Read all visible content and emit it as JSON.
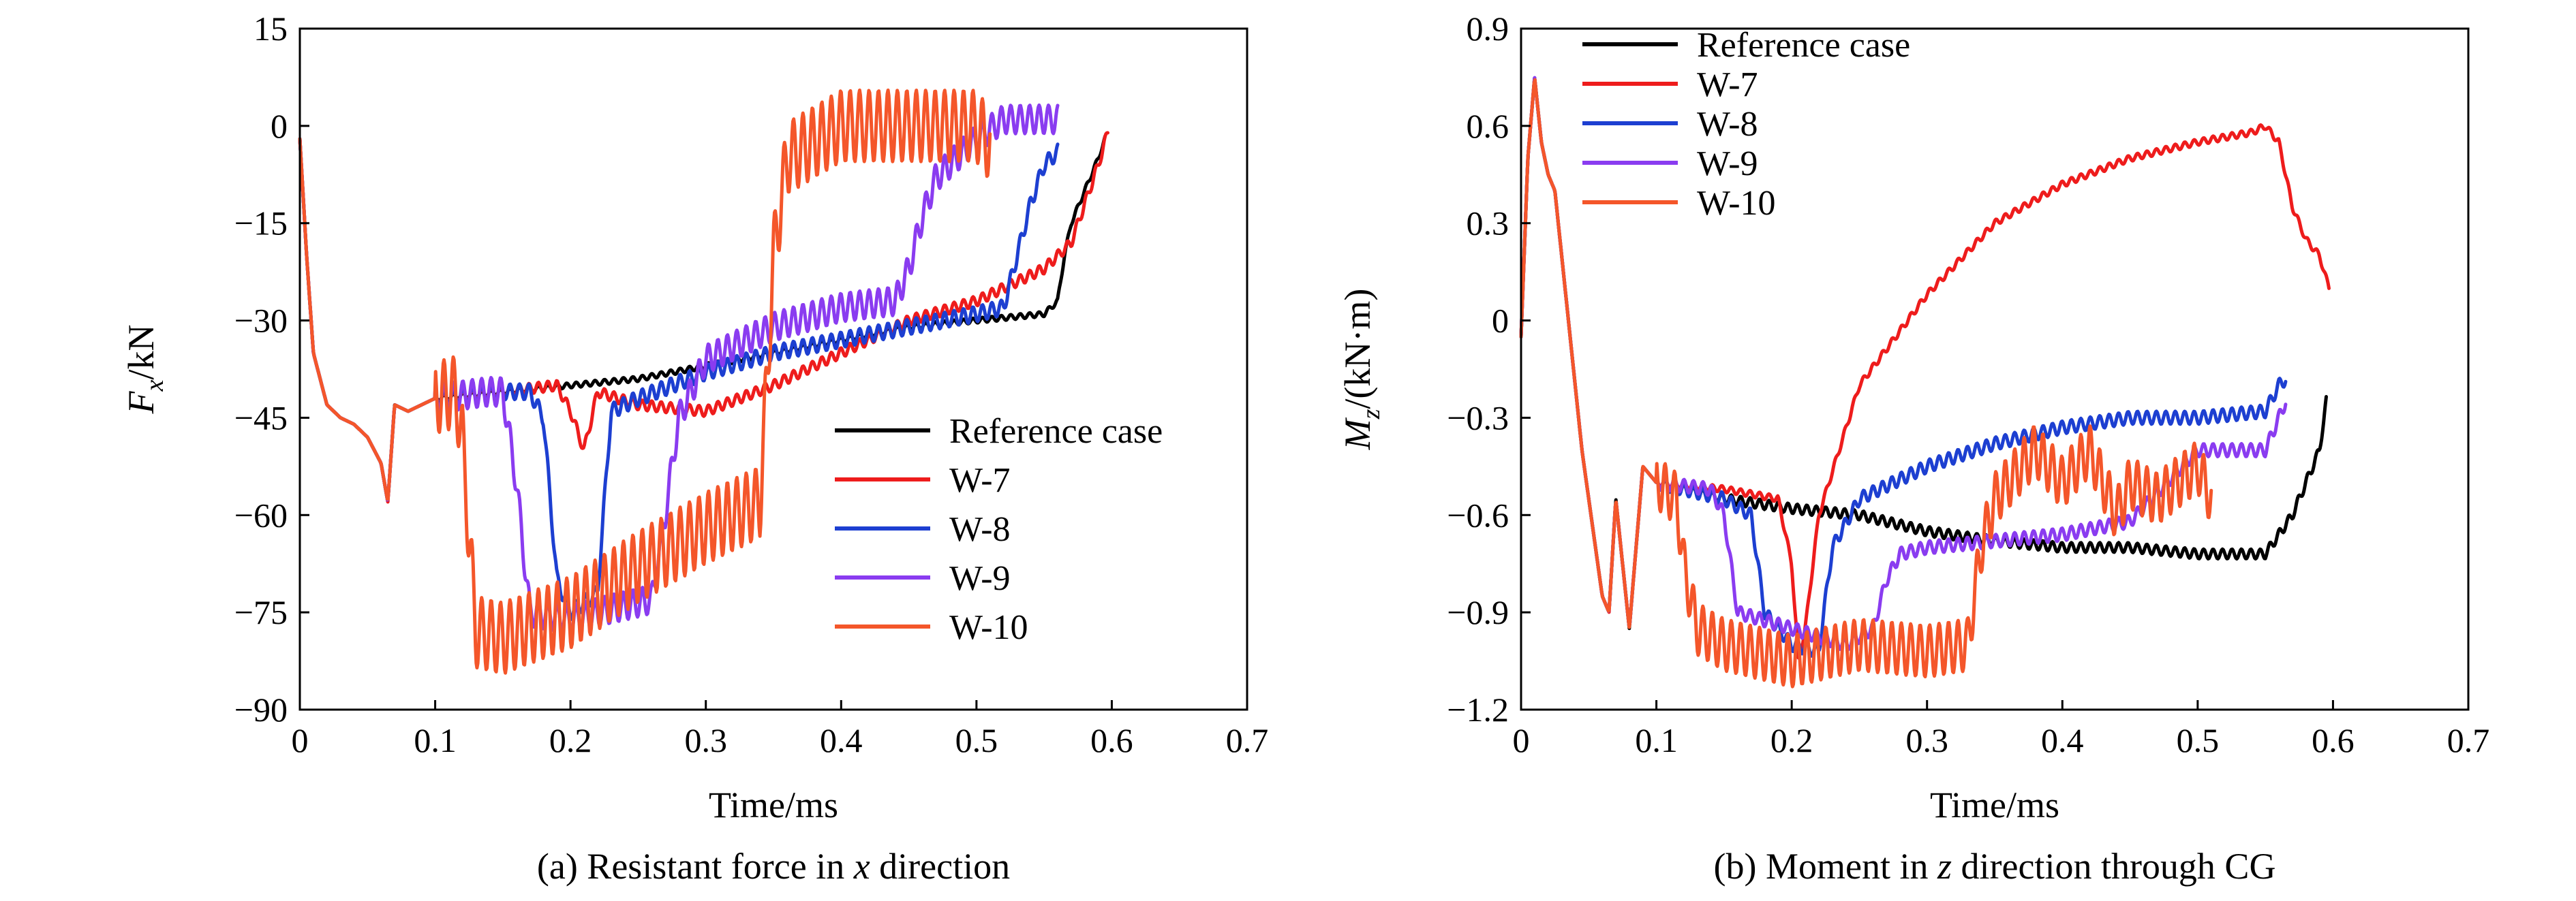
{
  "figure": {
    "captions": [
      {
        "prefix": "(a) Resistant force in ",
        "var": "x",
        "suffix": " direction"
      },
      {
        "prefix": "(b) Moment in ",
        "var": "z",
        "suffix": " direction through CG"
      }
    ]
  },
  "colors": {
    "Reference case": "#000000",
    "W-7": "#ee1c1c",
    "W-8": "#1d3fd1",
    "W-9": "#8a3cf0",
    "W-10": "#f4562a"
  },
  "chart_data": [
    {
      "type": "line",
      "xlabel": "Time/ms",
      "ylabel": {
        "main": "F",
        "sub": "x",
        "unit": "/kN"
      },
      "xlim": [
        0,
        0.7
      ],
      "ylim": [
        -90,
        15
      ],
      "xticks": [
        0,
        0.1,
        0.2,
        0.3,
        0.4,
        0.5,
        0.6,
        0.7
      ],
      "xtick_labels": [
        "0",
        "0.1",
        "0.2",
        "0.3",
        "0.4",
        "0.5",
        "0.6",
        "0.7"
      ],
      "yticks": [
        15,
        0,
        -15,
        -30,
        -45,
        -60,
        -75,
        -90
      ],
      "ytick_labels": [
        "15",
        "0",
        "−15",
        "−30",
        "−45",
        "−60",
        "−75",
        "−90"
      ],
      "grid": false,
      "legend_position": "bottom-right",
      "series": [
        {
          "name": "Reference case",
          "x": [
            0,
            0.005,
            0.01,
            0.02,
            0.03,
            0.04,
            0.05,
            0.06,
            0.065,
            0.07,
            0.08,
            0.1,
            0.15,
            0.2,
            0.25,
            0.3,
            0.35,
            0.4,
            0.45,
            0.5,
            0.55,
            0.56,
            0.565,
            0.57,
            0.58,
            0.59,
            0.595
          ],
          "y": [
            -2,
            -20,
            -35,
            -43,
            -45,
            -46,
            -48,
            -52,
            -58,
            -43,
            -44,
            -42,
            -41,
            -40,
            -39,
            -37,
            -35,
            -33,
            -31,
            -30,
            -29,
            -27,
            -20,
            -15,
            -10,
            -5,
            -2
          ]
        },
        {
          "name": "W-7",
          "x": [
            0,
            0.005,
            0.01,
            0.02,
            0.03,
            0.04,
            0.05,
            0.06,
            0.065,
            0.07,
            0.08,
            0.1,
            0.15,
            0.19,
            0.2,
            0.21,
            0.22,
            0.25,
            0.3,
            0.35,
            0.4,
            0.45,
            0.5,
            0.55,
            0.57,
            0.58,
            0.59,
            0.597
          ],
          "y": [
            -2,
            -20,
            -35,
            -43,
            -45,
            -46,
            -48,
            -52,
            -58,
            -43,
            -44,
            -42,
            -41,
            -40,
            -44,
            -50,
            -41,
            -43,
            -44,
            -40,
            -35,
            -30,
            -27,
            -22,
            -18,
            -12,
            -6,
            -1
          ]
        },
        {
          "name": "W-8",
          "x": [
            0,
            0.005,
            0.01,
            0.02,
            0.03,
            0.04,
            0.05,
            0.06,
            0.065,
            0.07,
            0.08,
            0.1,
            0.15,
            0.17,
            0.18,
            0.19,
            0.2,
            0.22,
            0.23,
            0.25,
            0.3,
            0.35,
            0.4,
            0.45,
            0.5,
            0.52,
            0.53,
            0.54,
            0.55,
            0.56
          ],
          "y": [
            -2,
            -20,
            -35,
            -43,
            -45,
            -46,
            -48,
            -52,
            -58,
            -43,
            -44,
            -42,
            -41,
            -41,
            -45,
            -70,
            -75,
            -72,
            -44,
            -42,
            -38,
            -35,
            -33,
            -31,
            -29,
            -28,
            -20,
            -12,
            -6,
            -4
          ]
        },
        {
          "name": "W-9",
          "x": [
            0,
            0.005,
            0.01,
            0.02,
            0.03,
            0.04,
            0.05,
            0.06,
            0.065,
            0.07,
            0.08,
            0.1,
            0.14,
            0.15,
            0.16,
            0.17,
            0.2,
            0.26,
            0.27,
            0.28,
            0.3,
            0.35,
            0.4,
            0.44,
            0.45,
            0.46,
            0.47,
            0.5,
            0.52,
            0.54,
            0.56
          ],
          "y": [
            -2,
            -20,
            -35,
            -43,
            -45,
            -46,
            -48,
            -52,
            -58,
            -43,
            -44,
            -42,
            -41,
            -41,
            -55,
            -75,
            -76,
            -73,
            -60,
            -45,
            -36,
            -31,
            -28,
            -27,
            -22,
            -14,
            -8,
            -2,
            1,
            1,
            1
          ]
        },
        {
          "name": "W-10",
          "x": [
            0,
            0.005,
            0.01,
            0.02,
            0.03,
            0.04,
            0.05,
            0.06,
            0.065,
            0.07,
            0.08,
            0.1,
            0.115,
            0.12,
            0.13,
            0.15,
            0.2,
            0.25,
            0.3,
            0.34,
            0.345,
            0.35,
            0.36,
            0.4,
            0.45,
            0.5,
            0.51
          ],
          "y": [
            -2,
            -20,
            -35,
            -43,
            -45,
            -46,
            -48,
            -52,
            -58,
            -43,
            -44,
            -42,
            -41,
            -48,
            -78,
            -79,
            -75,
            -68,
            -62,
            -58,
            -40,
            -20,
            -5,
            0,
            0,
            0,
            -3
          ]
        }
      ]
    },
    {
      "type": "line",
      "xlabel": "Time/ms",
      "ylabel": {
        "main": "M",
        "sub": "z",
        "unit": "/(kN·m)"
      },
      "xlim": [
        0,
        0.7
      ],
      "ylim": [
        -1.2,
        0.9
      ],
      "xticks": [
        0,
        0.1,
        0.2,
        0.3,
        0.4,
        0.5,
        0.6,
        0.7
      ],
      "xtick_labels": [
        "0",
        "0.1",
        "0.2",
        "0.3",
        "0.4",
        "0.5",
        "0.6",
        "0.7"
      ],
      "yticks": [
        0.9,
        0.6,
        0.3,
        0,
        -0.3,
        -0.6,
        -0.9,
        -1.2
      ],
      "ytick_labels": [
        "0.9",
        "0.6",
        "0.3",
        "0",
        "−0.3",
        "−0.6",
        "−0.9",
        "−1.2"
      ],
      "grid": false,
      "legend_position": "top-left",
      "series": [
        {
          "name": "Reference case",
          "x": [
            0,
            0.005,
            0.01,
            0.015,
            0.02,
            0.025,
            0.03,
            0.035,
            0.04,
            0.045,
            0.05,
            0.06,
            0.065,
            0.07,
            0.08,
            0.09,
            0.1,
            0.15,
            0.2,
            0.25,
            0.3,
            0.35,
            0.4,
            0.45,
            0.5,
            0.55,
            0.57,
            0.58,
            0.59,
            0.595
          ],
          "y": [
            -0.05,
            0.5,
            0.75,
            0.55,
            0.45,
            0.4,
            0.2,
            0.0,
            -0.2,
            -0.4,
            -0.55,
            -0.85,
            -0.9,
            -0.55,
            -0.95,
            -0.45,
            -0.5,
            -0.55,
            -0.58,
            -0.6,
            -0.65,
            -0.68,
            -0.7,
            -0.7,
            -0.72,
            -0.72,
            -0.6,
            -0.5,
            -0.4,
            -0.25
          ]
        },
        {
          "name": "W-7",
          "x": [
            0,
            0.005,
            0.01,
            0.015,
            0.02,
            0.025,
            0.03,
            0.035,
            0.04,
            0.045,
            0.05,
            0.06,
            0.065,
            0.07,
            0.08,
            0.09,
            0.1,
            0.15,
            0.19,
            0.2,
            0.205,
            0.21,
            0.22,
            0.25,
            0.3,
            0.35,
            0.4,
            0.45,
            0.5,
            0.54,
            0.55,
            0.56,
            0.57,
            0.58,
            0.59,
            0.597
          ],
          "y": [
            -0.05,
            0.5,
            0.75,
            0.55,
            0.45,
            0.4,
            0.2,
            0.0,
            -0.2,
            -0.4,
            -0.55,
            -0.85,
            -0.9,
            -0.55,
            -0.95,
            -0.45,
            -0.5,
            -0.52,
            -0.55,
            -0.75,
            -1.05,
            -0.95,
            -0.6,
            -0.2,
            0.08,
            0.3,
            0.42,
            0.5,
            0.55,
            0.58,
            0.6,
            0.55,
            0.35,
            0.25,
            0.2,
            0.1
          ]
        },
        {
          "name": "W-8",
          "x": [
            0,
            0.005,
            0.01,
            0.015,
            0.02,
            0.025,
            0.03,
            0.035,
            0.04,
            0.045,
            0.05,
            0.06,
            0.065,
            0.07,
            0.08,
            0.09,
            0.1,
            0.15,
            0.17,
            0.18,
            0.2,
            0.22,
            0.23,
            0.25,
            0.3,
            0.35,
            0.4,
            0.45,
            0.5,
            0.55,
            0.56,
            0.565
          ],
          "y": [
            -0.05,
            0.5,
            0.75,
            0.55,
            0.45,
            0.4,
            0.2,
            0.0,
            -0.2,
            -0.4,
            -0.55,
            -0.85,
            -0.9,
            -0.55,
            -0.95,
            -0.45,
            -0.5,
            -0.55,
            -0.6,
            -0.9,
            -1.0,
            -1.02,
            -0.7,
            -0.55,
            -0.45,
            -0.38,
            -0.33,
            -0.3,
            -0.3,
            -0.28,
            -0.2,
            -0.18
          ]
        },
        {
          "name": "W-9",
          "x": [
            0,
            0.005,
            0.01,
            0.015,
            0.02,
            0.025,
            0.03,
            0.035,
            0.04,
            0.045,
            0.05,
            0.06,
            0.065,
            0.07,
            0.08,
            0.09,
            0.1,
            0.14,
            0.15,
            0.16,
            0.2,
            0.24,
            0.26,
            0.27,
            0.28,
            0.3,
            0.35,
            0.4,
            0.45,
            0.5,
            0.55,
            0.56,
            0.565
          ],
          "y": [
            -0.05,
            0.5,
            0.75,
            0.55,
            0.45,
            0.4,
            0.2,
            0.0,
            -0.2,
            -0.4,
            -0.55,
            -0.85,
            -0.9,
            -0.55,
            -0.95,
            -0.45,
            -0.5,
            -0.52,
            -0.6,
            -0.9,
            -0.95,
            -1.0,
            -0.95,
            -0.8,
            -0.72,
            -0.7,
            -0.68,
            -0.66,
            -0.62,
            -0.4,
            -0.4,
            -0.3,
            -0.25
          ]
        },
        {
          "name": "W-10",
          "x": [
            0,
            0.005,
            0.01,
            0.015,
            0.02,
            0.025,
            0.03,
            0.035,
            0.04,
            0.045,
            0.05,
            0.06,
            0.065,
            0.07,
            0.08,
            0.09,
            0.1,
            0.115,
            0.12,
            0.13,
            0.15,
            0.2,
            0.25,
            0.3,
            0.33,
            0.34,
            0.35,
            0.36,
            0.38,
            0.4,
            0.42,
            0.44,
            0.45,
            0.47,
            0.5,
            0.51
          ],
          "y": [
            -0.05,
            0.5,
            0.75,
            0.55,
            0.45,
            0.4,
            0.2,
            0.0,
            -0.2,
            -0.4,
            -0.55,
            -0.85,
            -0.9,
            -0.55,
            -0.95,
            -0.45,
            -0.5,
            -0.55,
            -0.75,
            -0.95,
            -1.0,
            -1.05,
            -1.0,
            -1.02,
            -1.0,
            -0.7,
            -0.55,
            -0.5,
            -0.4,
            -0.5,
            -0.4,
            -0.6,
            -0.5,
            -0.55,
            -0.45,
            -0.55
          ]
        }
      ]
    }
  ]
}
